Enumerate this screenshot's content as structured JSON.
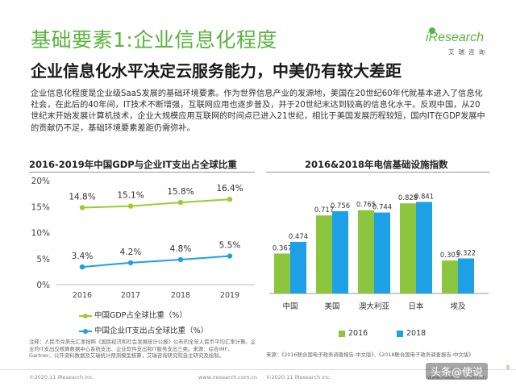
{
  "header": {
    "title": "基础要素1:企业信息化程度",
    "subtitle": "企业信息化水平决定云服务能力，中美仍有较大差距"
  },
  "logo": {
    "text": "iResearch",
    "cn": "艾瑞咨询"
  },
  "intro": "企业信息化程度是企业级SaaS发展的基础环境要素。作为世界信息产业的发源地，美国在20世纪60年代就基本进入了信息化社会，在此后的40年间，IT技术不断增强，互联网应用也逐步普及，并于20世纪末达到较高的信息化水平。反观中国，从20世纪末开始发展计算机技术，企业大规模应用互联网的时间点已进入21世纪，相比于美国发展历程较短，国内IT在GDP发展中的贡献仍不足，基础环境要素差距仍需弥补。",
  "colors": {
    "accent": "#5bb33f",
    "line_green": "#9acd32",
    "line_blue": "#1ea0e6",
    "bar_green": "#8cc63f",
    "bar_blue": "#1ea0e6"
  },
  "chart_data": [
    {
      "type": "line",
      "title": "2016-2019年中国GDP与企业IT支出占全球比重",
      "categories": [
        "2016",
        "2017",
        "2018",
        "2019"
      ],
      "yticks": [
        "0%",
        "5%",
        "10%",
        "15%",
        "20%"
      ],
      "ylim": [
        0,
        20
      ],
      "series": [
        {
          "name": "中国GDP占全球比重（%）",
          "values": [
            14.8,
            15.1,
            15.8,
            16.4
          ],
          "labels": [
            "14.8%",
            "15.1%",
            "15.8%",
            "16.4%"
          ],
          "color": "#9acd32"
        },
        {
          "name": "中国企业IT支出占全球比重（%）",
          "values": [
            3.4,
            4.2,
            4.8,
            5.5
          ],
          "labels": [
            "3.4%",
            "4.2%",
            "4.8%",
            "5.5%"
          ],
          "color": "#1ea0e6"
        }
      ],
      "grid": false,
      "legend": "bottom"
    },
    {
      "type": "bar",
      "title": "2016&2018年电信基础设施指数",
      "categories": [
        "中国",
        "美国",
        "澳大利亚",
        "日本",
        "埃及"
      ],
      "series": [
        {
          "name": "2016",
          "values": [
            0.367,
            0.717,
            0.765,
            0.828,
            0.303
          ],
          "labels": [
            "0.367",
            "0.717",
            "0.765",
            "0.828",
            "0.303"
          ],
          "color": "#8cc63f"
        },
        {
          "name": "2018",
          "values": [
            0.474,
            0.756,
            0.744,
            0.841,
            0.322
          ],
          "labels": [
            "0.474",
            "0.756",
            "0.744",
            "0.841",
            "0.322"
          ],
          "color": "#1ea0e6"
        }
      ],
      "ylim": [
        0,
        1
      ],
      "grid": false,
      "legend": "bottom"
    }
  ],
  "notes": {
    "left": "注释：人民币兑美元汇率按照《国民经济和社会发展统计公报》公布的全年人民币平均汇率计算。企业的IT支出仅核算数据中心系统支出、企业软件支出和IT服务支出三类。来源：综合IMF、Gartner、公开资料数据及艾瑞统计预测模型核算，艾瑞咨询研究院自主研究及绘制。",
    "right": "来源：《2016联合国电子政务调查报告-中文版》、《2018联合国电子政务调查报告-中文版》"
  },
  "footer": {
    "left_copyright": "©2020.11 iResearch Inc.",
    "left_url": "www.iresearch.com.cn",
    "right_copyright": "©2020.11 iResearch Inc.",
    "right_url": "www.iresearch.com.cn"
  },
  "watermark": "头条@使说",
  "page_number": "6"
}
